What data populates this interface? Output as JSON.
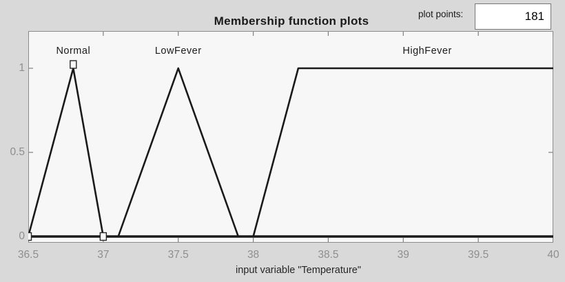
{
  "header": {
    "title": "Membership function plots",
    "plot_points_label": "plot points:",
    "plot_points_value": "181"
  },
  "axes": {
    "xlabel": "input variable \"Temperature\"",
    "x_tick_labels": [
      "36.5",
      "37",
      "37.5",
      "38",
      "38.5",
      "39",
      "39.5",
      "40"
    ],
    "y_tick_labels": [
      "0",
      "0.5",
      "1"
    ]
  },
  "chart_data": {
    "type": "line",
    "title": "Membership function plots",
    "xlabel": "input variable \"Temperature\"",
    "ylabel": "",
    "xlim": [
      36.5,
      40
    ],
    "ylim": [
      0,
      1
    ],
    "x_ticks": [
      36.5,
      37,
      37.5,
      38,
      38.5,
      39,
      39.5,
      40
    ],
    "y_ticks": [
      0,
      0.5,
      1
    ],
    "grid": false,
    "legend_position": "none",
    "series": [
      {
        "name": "Normal",
        "shape": "triangle",
        "points": [
          [
            36.5,
            0
          ],
          [
            36.8,
            1
          ],
          [
            37,
            0
          ]
        ],
        "selected": true,
        "label_x": 36.8
      },
      {
        "name": "LowFever",
        "shape": "triangle",
        "points": [
          [
            37.1,
            0
          ],
          [
            37.5,
            1
          ],
          [
            37.9,
            0
          ]
        ],
        "selected": false,
        "label_x": 37.5
      },
      {
        "name": "HighFever",
        "shape": "trapezoid",
        "points": [
          [
            38,
            0
          ],
          [
            38.3,
            1
          ],
          [
            40,
            1
          ]
        ],
        "selected": false,
        "label_x": 39.16
      }
    ],
    "baseline": {
      "y": 0,
      "from": 36.5,
      "to": 40
    }
  },
  "colors": {
    "figure_bg": "#d9d9d9",
    "plot_bg": "#f7f7f7",
    "axis_border": "#8c8c8c",
    "tick": "#7f7f7f",
    "tick_label": "#8e8e8e",
    "curve": "#1a1a1a",
    "marker_fill": "#fbfbfb"
  }
}
